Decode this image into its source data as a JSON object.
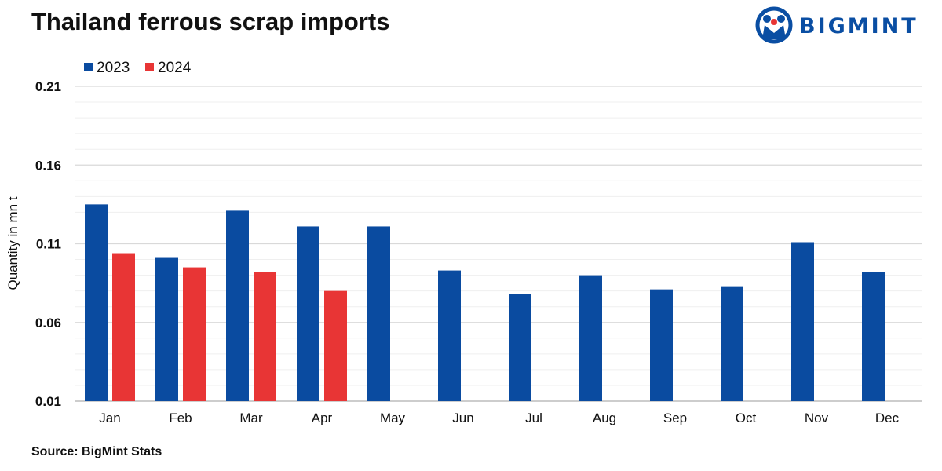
{
  "title": "Thailand ferrous scrap imports",
  "logo": {
    "text": "BIGMINT",
    "icon": "bigmint-logo-icon",
    "color": "#0a4ea3"
  },
  "source": "Source: BigMint Stats",
  "colors": {
    "series_2023": "#0a4ba0",
    "series_2024": "#e83535",
    "grid": "#d9d9d9",
    "grid_minor": "#efefef"
  },
  "chart_data": {
    "type": "bar",
    "title": "Thailand ferrous scrap imports",
    "xlabel": "",
    "ylabel": "Quantity in mn t",
    "ylim": [
      0.01,
      0.21
    ],
    "yticks": [
      "0.01",
      "0.06",
      "0.11",
      "0.16",
      "0.21"
    ],
    "grid": true,
    "legend": "top-left",
    "categories": [
      "Jan",
      "Feb",
      "Mar",
      "Apr",
      "May",
      "Jun",
      "Jul",
      "Aug",
      "Sep",
      "Oct",
      "Nov",
      "Dec"
    ],
    "series": [
      {
        "name": "2023",
        "values": [
          0.135,
          0.101,
          0.131,
          0.121,
          0.121,
          0.093,
          0.078,
          0.09,
          0.081,
          0.083,
          0.111,
          0.092
        ]
      },
      {
        "name": "2024",
        "values": [
          0.104,
          0.095,
          0.092,
          0.08,
          null,
          null,
          null,
          null,
          null,
          null,
          null,
          null
        ]
      }
    ]
  }
}
